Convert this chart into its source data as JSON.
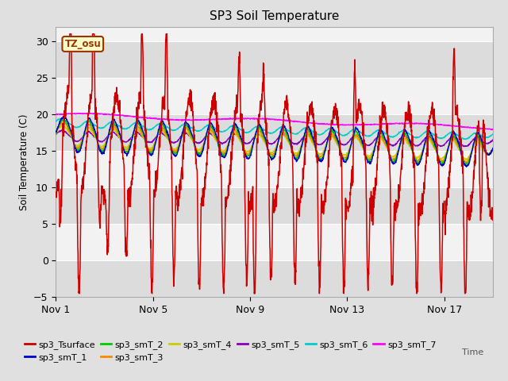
{
  "title": "SP3 Soil Temperature",
  "ylabel": "Soil Temperature (C)",
  "xlabel": "Time",
  "ylim": [
    -5,
    32
  ],
  "yticks": [
    -5,
    0,
    5,
    10,
    15,
    20,
    25,
    30
  ],
  "bg_color": "#e0e0e0",
  "plot_bg_light": "#f2f2f2",
  "plot_bg_dark": "#dcdcdc",
  "series_colors": {
    "sp3_Tsurface": "#cc0000",
    "sp3_smT_1": "#0000cc",
    "sp3_smT_2": "#00cc00",
    "sp3_smT_3": "#ff8800",
    "sp3_smT_4": "#cccc00",
    "sp3_smT_5": "#8800bb",
    "sp3_smT_6": "#00cccc",
    "sp3_smT_7": "#ff00ff"
  },
  "annotation_text": "TZ_osu",
  "annotation_bg": "#ffffcc",
  "annotation_border": "#993300",
  "xtick_labels": [
    "Nov 1",
    "Nov 5",
    "Nov 9",
    "Nov 13",
    "Nov 17"
  ],
  "xtick_pos": [
    0,
    4,
    8,
    12,
    16
  ]
}
